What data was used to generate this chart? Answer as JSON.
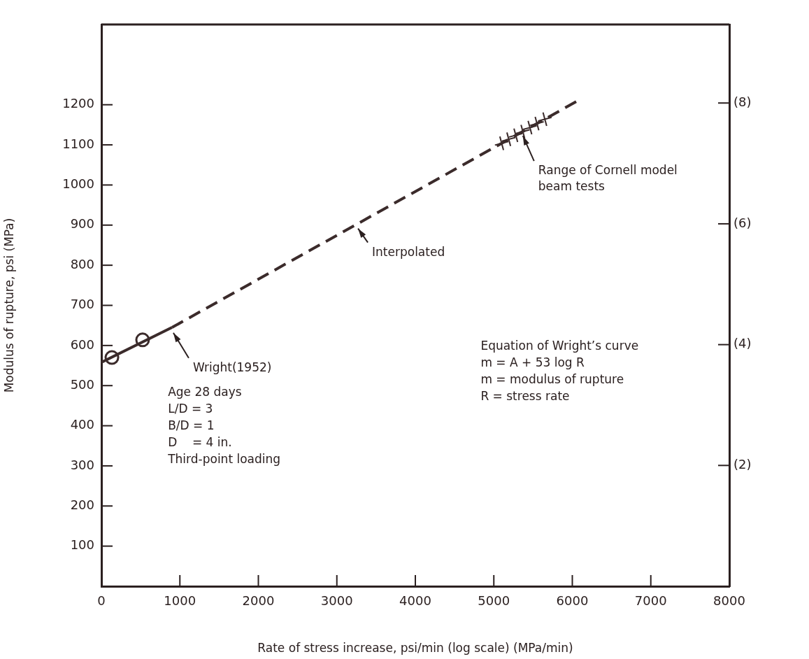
{
  "chart_data": {
    "type": "line",
    "xlabel": "Rate of stress increase, psi/min (log scale) (MPa/min)",
    "ylabel": "Modulus of rupture, psi (MPa)",
    "xlim": [
      0,
      8000
    ],
    "xticks": [
      0,
      1000,
      2000,
      3000,
      4000,
      5000,
      6000,
      7000,
      8000
    ],
    "ylim": [
      0,
      1400
    ],
    "yticks": [
      100,
      200,
      300,
      400,
      500,
      600,
      700,
      800,
      900,
      1000,
      1100,
      1200
    ],
    "y2lim": [
      0,
      9.3
    ],
    "y2ticks": [
      {
        "value": 2,
        "label": "(2)"
      },
      {
        "value": 4,
        "label": "(4)"
      },
      {
        "value": 6,
        "label": "(6)"
      },
      {
        "value": 8,
        "label": "(8)"
      }
    ],
    "grid": false,
    "series": [
      {
        "type": "line",
        "color": "#3b2b2b",
        "x": [
          0,
          900
        ],
        "values": [
          558,
          645
        ],
        "line_style": "solid"
      },
      {
        "type": "line",
        "color": "#3b2b2b",
        "x": [
          900,
          6070
        ],
        "values": [
          645,
          1210
        ],
        "line_style": "dashed"
      },
      {
        "type": "scatter",
        "color": "#3b2b2b",
        "x": [
          134,
          525
        ],
        "values": [
          570,
          614
        ],
        "marker": "circle"
      },
      {
        "type": "scatter",
        "color": "#3b2b2b",
        "x": [
          5100,
          5190,
          5280,
          5370,
          5460,
          5550,
          5650
        ],
        "values": [
          1104,
          1114,
          1124,
          1133,
          1143,
          1153,
          1164
        ],
        "marker": "cross"
      }
    ],
    "annotations": [
      {
        "text": "Interpolated",
        "x": 3270,
        "y": 902
      },
      {
        "text": "Wright(1952)",
        "x": 917,
        "y": 642
      },
      "Age 28 days\nL/D = 3\nB/D = 1\nD    = 4 in.\nThird-point loading",
      "Equation of Wright’s curve\nm = A + 53 log R\nm = modulus of rupture\nR = stress rate",
      {
        "text": "Range of Cornell model beam tests",
        "x": 5370,
        "y": 1133
      }
    ]
  }
}
